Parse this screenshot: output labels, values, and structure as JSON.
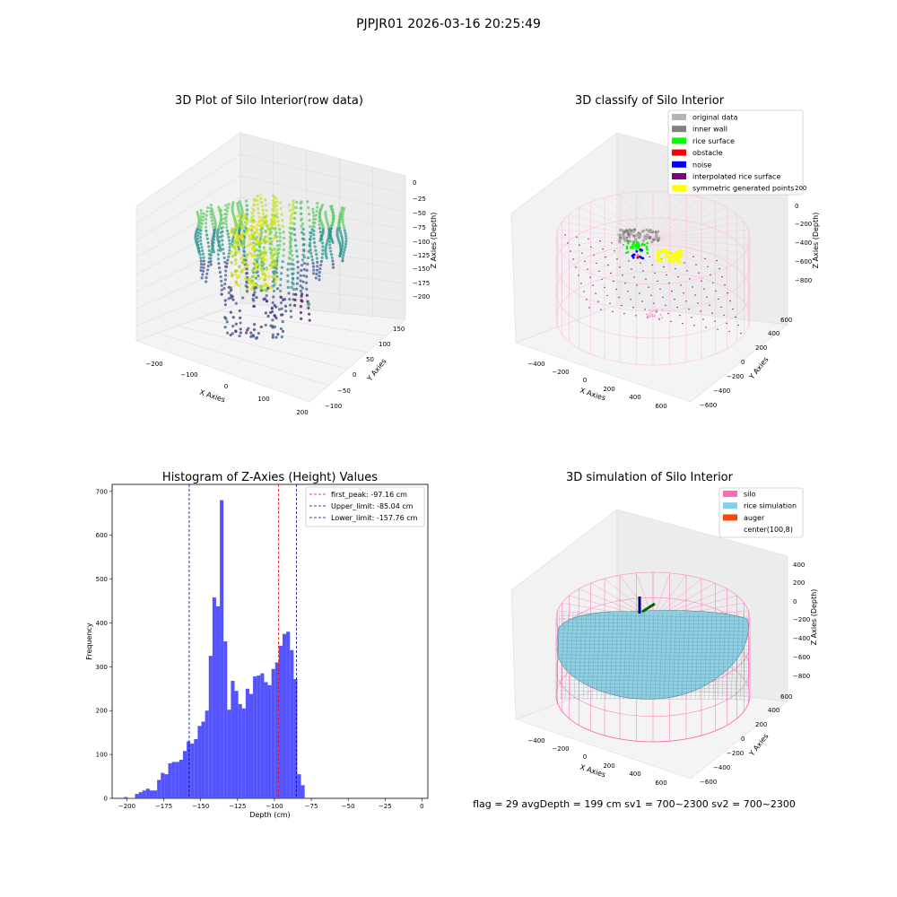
{
  "figure_title": "PJPJR01 2026-03-16 20:25:49",
  "footer_text": "flag = 29  avgDepth = 199 cm  sv1 = 700~2300  sv2 = 700~2300",
  "panels": {
    "raw": {
      "title": "3D Plot of Silo Interior(row data)",
      "xlabel": "X Axies",
      "ylabel": "Y Axies",
      "zlabel": "Z Axies (Depth)",
      "x_ticks": [
        "−200",
        "−100",
        "0",
        "100",
        "200"
      ],
      "y_ticks": [
        "−100",
        "−50",
        "0",
        "50",
        "100",
        "150"
      ],
      "z_ticks": [
        "0",
        "−25",
        "−50",
        "−75",
        "−100",
        "−125",
        "−150",
        "−175",
        "−200"
      ]
    },
    "classify": {
      "title": "3D classify of Silo Interior",
      "xlabel": "X Axies",
      "ylabel": "Y Axies",
      "zlabel": "Z Axies (Depth)",
      "x_ticks": [
        "−400",
        "−200",
        "0",
        "200",
        "400",
        "600"
      ],
      "y_ticks": [
        "−600",
        "−400",
        "−200",
        "0",
        "200",
        "400",
        "600"
      ],
      "z_ticks": [
        "200",
        "0",
        "−200",
        "−400",
        "−600",
        "−800"
      ],
      "legend": [
        {
          "label": "original data",
          "color": "#b3b3b3"
        },
        {
          "label": "inner wall",
          "color": "#808080"
        },
        {
          "label": "rice surface",
          "color": "#00ff00"
        },
        {
          "label": "obstacle",
          "color": "#ff0000"
        },
        {
          "label": "noise",
          "color": "#0000ff"
        },
        {
          "label": "interpolated rice surface",
          "color": "#800080"
        },
        {
          "label": "symmetric generated points",
          "color": "#ffff00"
        }
      ]
    },
    "simulation": {
      "title": "3D simulation of Silo Interior",
      "xlabel": "X Axies",
      "ylabel": "Y Axies",
      "zlabel": "Z Axies (Depth)",
      "x_ticks": [
        "−400",
        "−200",
        "0",
        "200",
        "400",
        "600"
      ],
      "y_ticks": [
        "−600",
        "−400",
        "−200",
        "0",
        "200",
        "400",
        "600"
      ],
      "z_ticks": [
        "400",
        "200",
        "0",
        "−200",
        "−400",
        "−600",
        "−800"
      ],
      "legend": [
        {
          "label": "silo",
          "color": "#ff69b4"
        },
        {
          "label": "rice simulation",
          "color": "#87ceeb"
        },
        {
          "label": "auger",
          "color": "#ff4500"
        },
        {
          "label": "center(100,8)",
          "color": ""
        }
      ]
    }
  },
  "chart_data": {
    "type": "bar",
    "title": "Histogram of Z-Axies (Height) Values",
    "xlabel": "Depth (cm)",
    "ylabel": "Frequency",
    "xlim": [
      -210,
      4
    ],
    "ylim": [
      0,
      716
    ],
    "x_ticks": [
      -200,
      -175,
      -150,
      -125,
      -100,
      -75,
      -50,
      -25,
      0
    ],
    "y_ticks": [
      0,
      100,
      200,
      300,
      400,
      500,
      600,
      700
    ],
    "bar_color": "#4b4bff",
    "bins": [
      [
        -202,
        3
      ],
      [
        -199.5,
        1
      ],
      [
        -197,
        1
      ],
      [
        -194.5,
        10
      ],
      [
        -192,
        14
      ],
      [
        -189.5,
        18
      ],
      [
        -187,
        22
      ],
      [
        -184.5,
        18
      ],
      [
        -182,
        18
      ],
      [
        -179.5,
        42
      ],
      [
        -177,
        58
      ],
      [
        -174.5,
        55
      ],
      [
        -172,
        80
      ],
      [
        -169.5,
        83
      ],
      [
        -167,
        83
      ],
      [
        -164.5,
        88
      ],
      [
        -162,
        108
      ],
      [
        -159.5,
        130
      ],
      [
        -157,
        125
      ],
      [
        -154.5,
        135
      ],
      [
        -152,
        165
      ],
      [
        -149.5,
        175
      ],
      [
        -147,
        200
      ],
      [
        -144.5,
        325
      ],
      [
        -142,
        458
      ],
      [
        -139.5,
        438
      ],
      [
        -137,
        680
      ],
      [
        -134.5,
        358
      ],
      [
        -132,
        202
      ],
      [
        -129.5,
        268
      ],
      [
        -127,
        245
      ],
      [
        -124.5,
        215
      ],
      [
        -122,
        205
      ],
      [
        -119.5,
        250
      ],
      [
        -117,
        238
      ],
      [
        -114.5,
        278
      ],
      [
        -112,
        280
      ],
      [
        -109.5,
        285
      ],
      [
        -107,
        265
      ],
      [
        -104.5,
        258
      ],
      [
        -102,
        295
      ],
      [
        -99.5,
        310
      ],
      [
        -97,
        348
      ],
      [
        -94.5,
        375
      ],
      [
        -92,
        380
      ],
      [
        -89.5,
        338
      ],
      [
        -87,
        272
      ],
      [
        -84.5,
        55
      ],
      [
        -82,
        30
      ]
    ],
    "bin_width": 2.5,
    "vlines": [
      {
        "label": "first_peak: -97.16 cm",
        "value": -97.16,
        "color": "#ff0000"
      },
      {
        "label": "Upper_limit: -85.04 cm",
        "value": -85.04,
        "color": "#00008b"
      },
      {
        "label": "Lower_limit: -157.76 cm",
        "value": -157.76,
        "color": "#00008b"
      }
    ],
    "legend_position": "upper right"
  }
}
